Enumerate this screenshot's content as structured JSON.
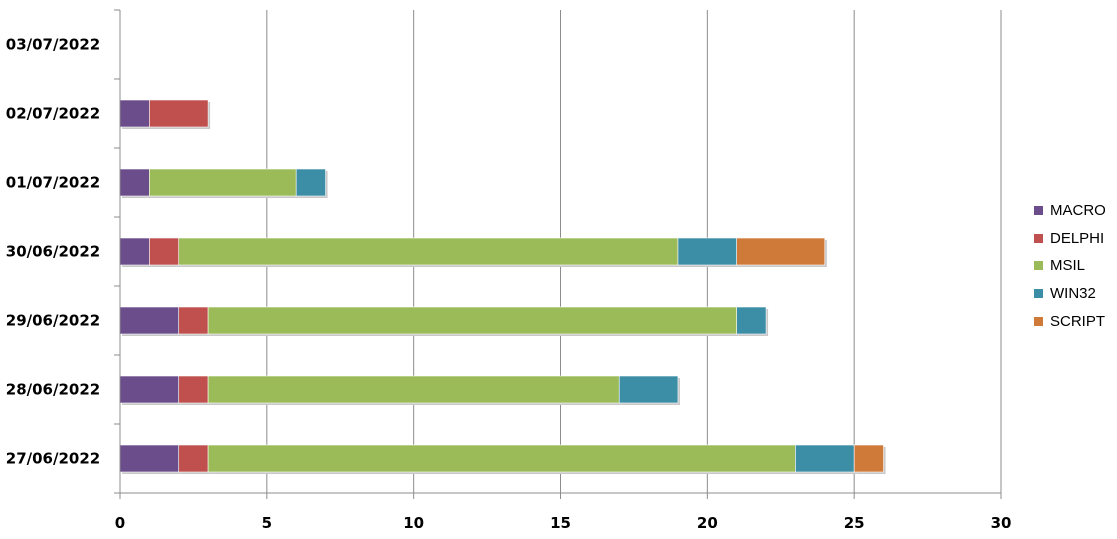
{
  "chart_data": {
    "type": "bar",
    "orientation": "horizontal",
    "stacked": true,
    "categories": [
      "27/06/2022",
      "28/06/2022",
      "29/06/2022",
      "30/06/2022",
      "01/07/2022",
      "02/07/2022",
      "03/07/2022"
    ],
    "series": [
      {
        "name": "MACRO",
        "color": "#6a4d8a",
        "values": [
          2,
          2,
          2,
          1,
          1,
          1,
          0
        ]
      },
      {
        "name": "DELPHI",
        "color": "#c0504d",
        "values": [
          1,
          1,
          1,
          1,
          0,
          2,
          0
        ]
      },
      {
        "name": "MSIL",
        "color": "#9bbb59",
        "values": [
          20,
          14,
          18,
          17,
          5,
          0,
          0
        ]
      },
      {
        "name": "WIN32",
        "color": "#3b8ea5",
        "values": [
          2,
          2,
          1,
          2,
          1,
          0,
          0
        ]
      },
      {
        "name": "SCRIPT",
        "color": "#d07a3a",
        "values": [
          1,
          0,
          0,
          3,
          0,
          0,
          0
        ]
      }
    ],
    "xlim": [
      0,
      30
    ],
    "xticks": [
      "0",
      "5",
      "10",
      "15",
      "20",
      "25",
      "30"
    ],
    "grid": true,
    "legend_position": "right"
  }
}
